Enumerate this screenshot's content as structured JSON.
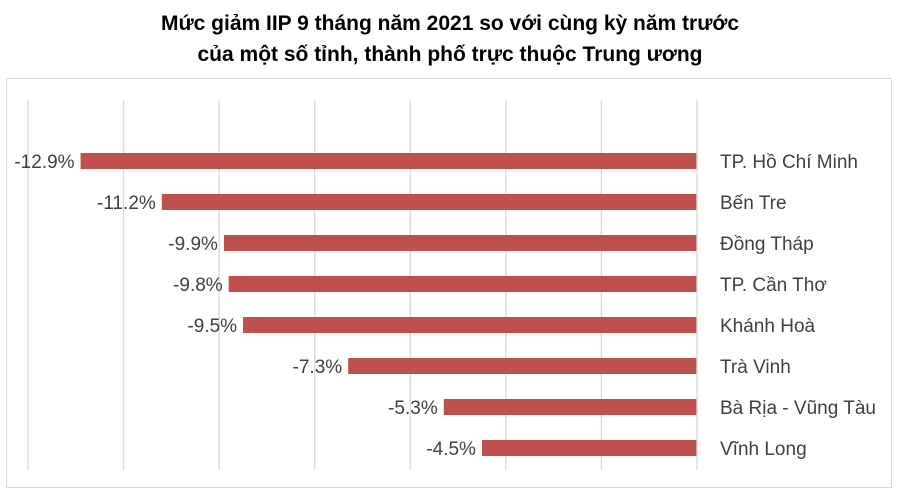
{
  "chart_data": {
    "type": "bar",
    "orientation": "horizontal",
    "title": "Mức giảm IIP 9 tháng năm 2021 so với cùng kỳ năm trước\ncủa một số tỉnh, thành phố trực thuộc Trung ương",
    "title_lines": [
      "Mức giảm IIP 9 tháng năm 2021 so với cùng kỳ năm trước",
      "của một số tỉnh, thành phố trực thuộc Trung ương"
    ],
    "categories": [
      "TP. Hồ Chí Minh",
      "Bến Tre",
      "Đồng Tháp",
      "TP. Cần Thơ",
      "Khánh Hoà",
      "Trà Vinh",
      "Bà Rịa - Vũng Tàu",
      "Vĩnh Long"
    ],
    "values": [
      -12.9,
      -11.2,
      -9.9,
      -9.8,
      -9.5,
      -7.3,
      -5.3,
      -4.5
    ],
    "data_labels": [
      "-12.9%",
      "-11.2%",
      "-9.9%",
      "-9.8%",
      "-9.5%",
      "-7.3%",
      "-5.3%",
      "-4.5%"
    ],
    "unit": "%",
    "xlim": [
      -14,
      0
    ],
    "grid_step": 2,
    "grid": true,
    "axis_tick_labels_shown": false,
    "legend": "none",
    "bar_color": "#C0504D",
    "gridline_color": "#D9D9D9"
  }
}
